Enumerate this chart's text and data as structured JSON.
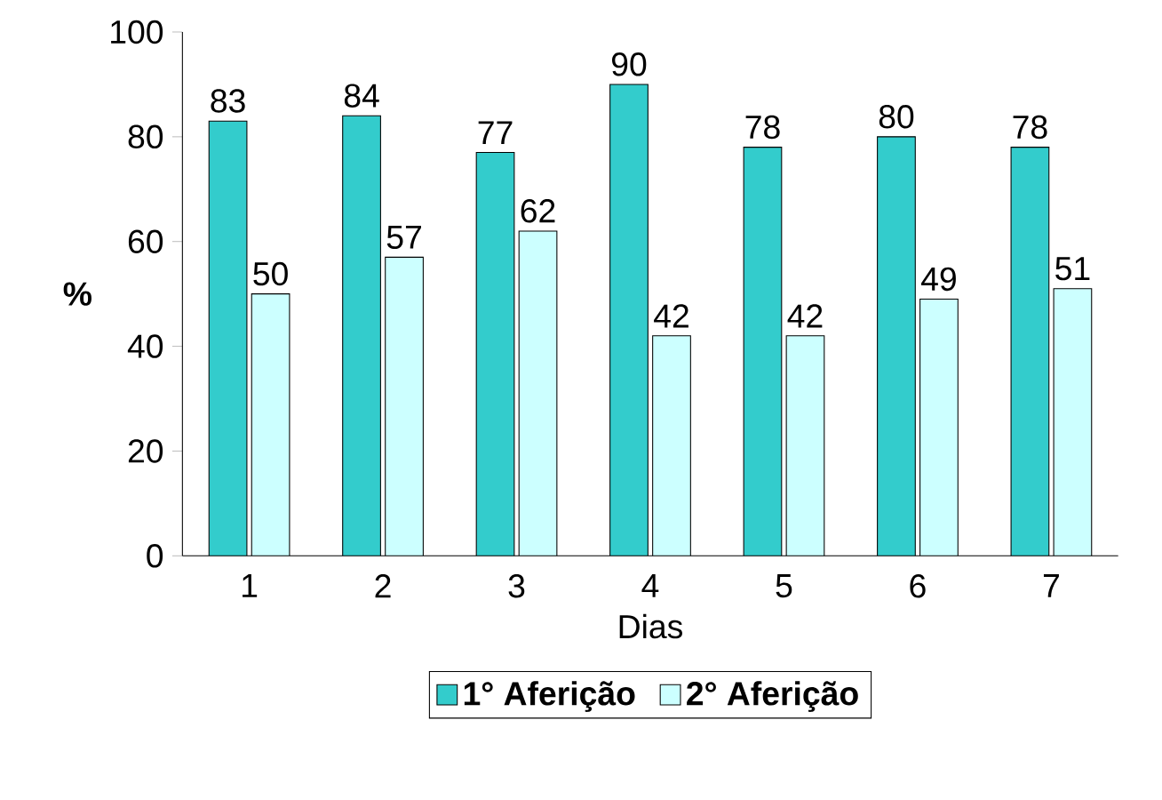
{
  "chart_data": {
    "type": "bar",
    "xlabel": "Dias",
    "ylabel": "%",
    "categories": [
      "1",
      "2",
      "3",
      "4",
      "5",
      "6",
      "7"
    ],
    "series": [
      {
        "name": "1° Aferição",
        "color": "#33cccc",
        "values": [
          83,
          84,
          77,
          90,
          78,
          80,
          78
        ]
      },
      {
        "name": "2° Aferição",
        "color": "#ccffff",
        "values": [
          50,
          57,
          62,
          42,
          42,
          49,
          51
        ]
      }
    ],
    "ylim": [
      0,
      100
    ],
    "yticks": [
      0,
      20,
      40,
      60,
      80,
      100
    ],
    "grid": false,
    "legend": "bottom",
    "data_labels": true
  }
}
